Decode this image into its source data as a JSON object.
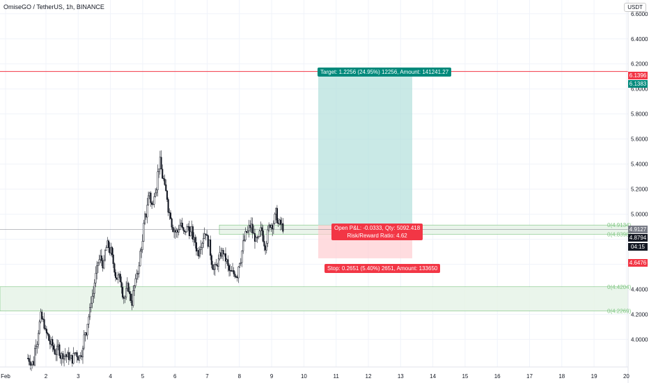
{
  "title": "OmiseGO / TetherUS, 1h, BINANCE",
  "currency": "USDT",
  "position": {
    "target_label": "Target: 1.2256 (24.95%) 12256, Amount: 141241.27",
    "pnl_label": "Open P&L: -0.0333, Qty: 5092.418",
    "rr_label": "Risk/Reward Ratio: 4.62",
    "stop_label": "Stop: 0.2651 (5.40%) 2651, Amount: 133650"
  },
  "price_tags": {
    "red_line": "6.1396",
    "target": "6.1383",
    "entry": "4.9127",
    "last": "4.8794",
    "countdown": "04:15",
    "stop": "4.6476"
  },
  "fib_labels": [
    "0(4.9134)",
    "0(4.8398)",
    "0(4.4204)",
    "0(4.2269)"
  ],
  "colors": {
    "up": "#131722",
    "down": "#131722",
    "target_zone": "#b2dfdb",
    "stop_zone": "#ffcdd2",
    "target_tag": "#00897b",
    "stop_tag": "#f23645",
    "red_line": "#f23645",
    "green_zone": "#e8f5e9",
    "green_zone_border": "#4caf50"
  },
  "chart_data": {
    "type": "candlestick",
    "y_ticks": [
      "6.6000",
      "6.4000",
      "6.2000",
      "6.0000",
      "5.8000",
      "5.6000",
      "5.4000",
      "5.2000",
      "5.0000",
      "4.8000",
      "4.6000",
      "4.4000",
      "4.2000",
      "4.0000"
    ],
    "x_ticks": [
      "Feb",
      "2",
      "3",
      "4",
      "5",
      "6",
      "7",
      "8",
      "9",
      "10",
      "11",
      "12",
      "13",
      "14",
      "15",
      "16",
      "17",
      "18",
      "19",
      "20"
    ],
    "ylim": [
      3.78,
      6.71
    ],
    "horizontal_line": 6.1396,
    "target_price": 6.1383,
    "entry_price": 4.9127,
    "stop_price": 4.6476,
    "last_price": 4.8794,
    "green_zones": [
      [
        4.8398,
        4.9134
      ],
      [
        4.2269,
        4.4204
      ]
    ],
    "candles_path": [
      3.85,
      3.82,
      4.05,
      4.2,
      4.1,
      4.0,
      3.95,
      3.9,
      3.92,
      3.88,
      3.9,
      3.85,
      3.83,
      3.9,
      3.88,
      3.95,
      4.1,
      4.25,
      4.4,
      4.55,
      4.65,
      4.6,
      4.75,
      4.7,
      4.55,
      4.5,
      4.45,
      4.35,
      4.4,
      4.3,
      4.45,
      4.6,
      4.8,
      5.0,
      5.2,
      5.05,
      5.3,
      5.45,
      5.25,
      5.1,
      5.0,
      4.9,
      4.85,
      4.95,
      4.8,
      4.9,
      4.85,
      4.75,
      4.7,
      4.85,
      4.9,
      4.75,
      4.6,
      4.55,
      4.65,
      4.7,
      4.6,
      4.5,
      4.5,
      4.55,
      4.7,
      4.8,
      4.85,
      4.9,
      4.8,
      4.75,
      4.85,
      4.78,
      4.9,
      4.95,
      5.0,
      4.9,
      4.88
    ]
  }
}
